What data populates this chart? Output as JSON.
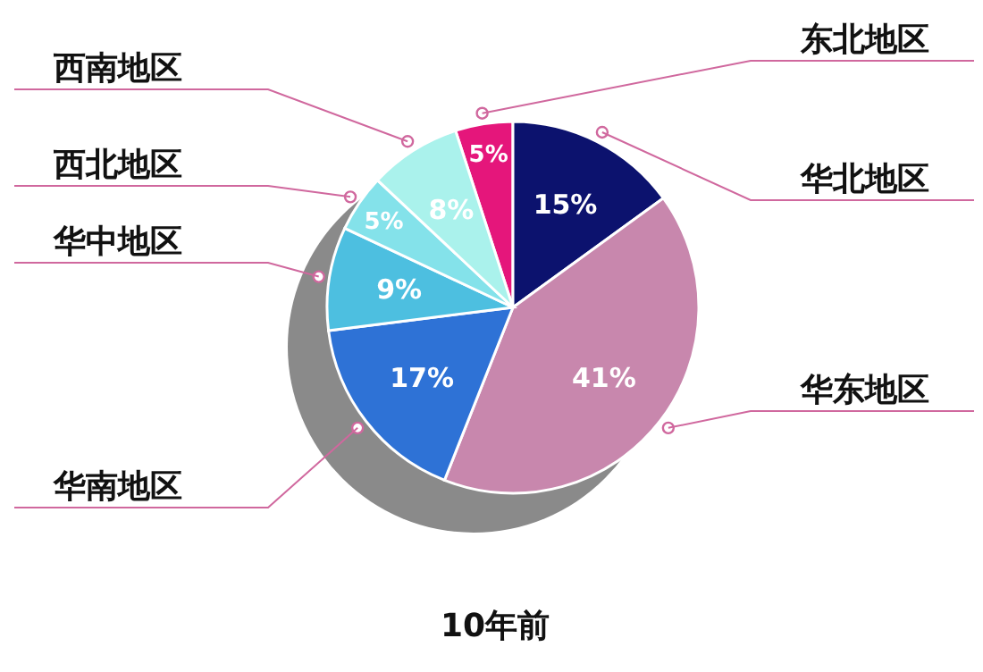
{
  "chart_data": {
    "type": "pie",
    "title": "10年前",
    "categories": [
      "东北地区",
      "华北地区",
      "华东地区",
      "华南地区",
      "华中地区",
      "西北地区",
      "西南地区"
    ],
    "values": [
      5,
      15,
      41,
      17,
      9,
      5,
      8
    ],
    "colors": [
      "#e5167b",
      "#0c126e",
      "#c887ad",
      "#2e72d6",
      "#4dbfe0",
      "#84e2ea",
      "#aaf2ec"
    ],
    "value_labels": [
      "5%",
      "15%",
      "41%",
      "17%",
      "9%",
      "5%",
      "8%"
    ]
  }
}
